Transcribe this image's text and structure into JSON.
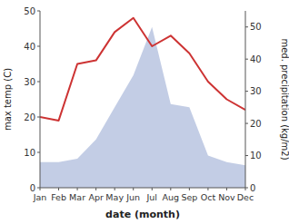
{
  "chart_data": {
    "type": "line",
    "xlabel": "date (month)",
    "ylabel": "max temp (C)",
    "y2label": "med. precipitation (kg/m2)",
    "categories": [
      "Jan",
      "Feb",
      "Mar",
      "Apr",
      "May",
      "Jun",
      "Jul",
      "Aug",
      "Sep",
      "Oct",
      "Nov",
      "Dec"
    ],
    "series": [
      {
        "type": "area",
        "axis": "y2",
        "color": "#b8c4e0",
        "values": [
          8,
          8,
          9,
          15,
          25,
          35,
          50,
          26,
          25,
          10,
          8,
          7
        ]
      },
      {
        "type": "line",
        "color": "#cd3333",
        "values": [
          20,
          19,
          35,
          36,
          44,
          48,
          40,
          43,
          38,
          30,
          25,
          22
        ]
      }
    ],
    "ylim": [
      0,
      50
    ],
    "yticks": [
      0,
      10,
      20,
      30,
      40,
      50
    ],
    "y2lim": [
      0,
      55
    ],
    "y2ticks": [
      0,
      10,
      20,
      30,
      40,
      50
    ],
    "grid": false
  }
}
